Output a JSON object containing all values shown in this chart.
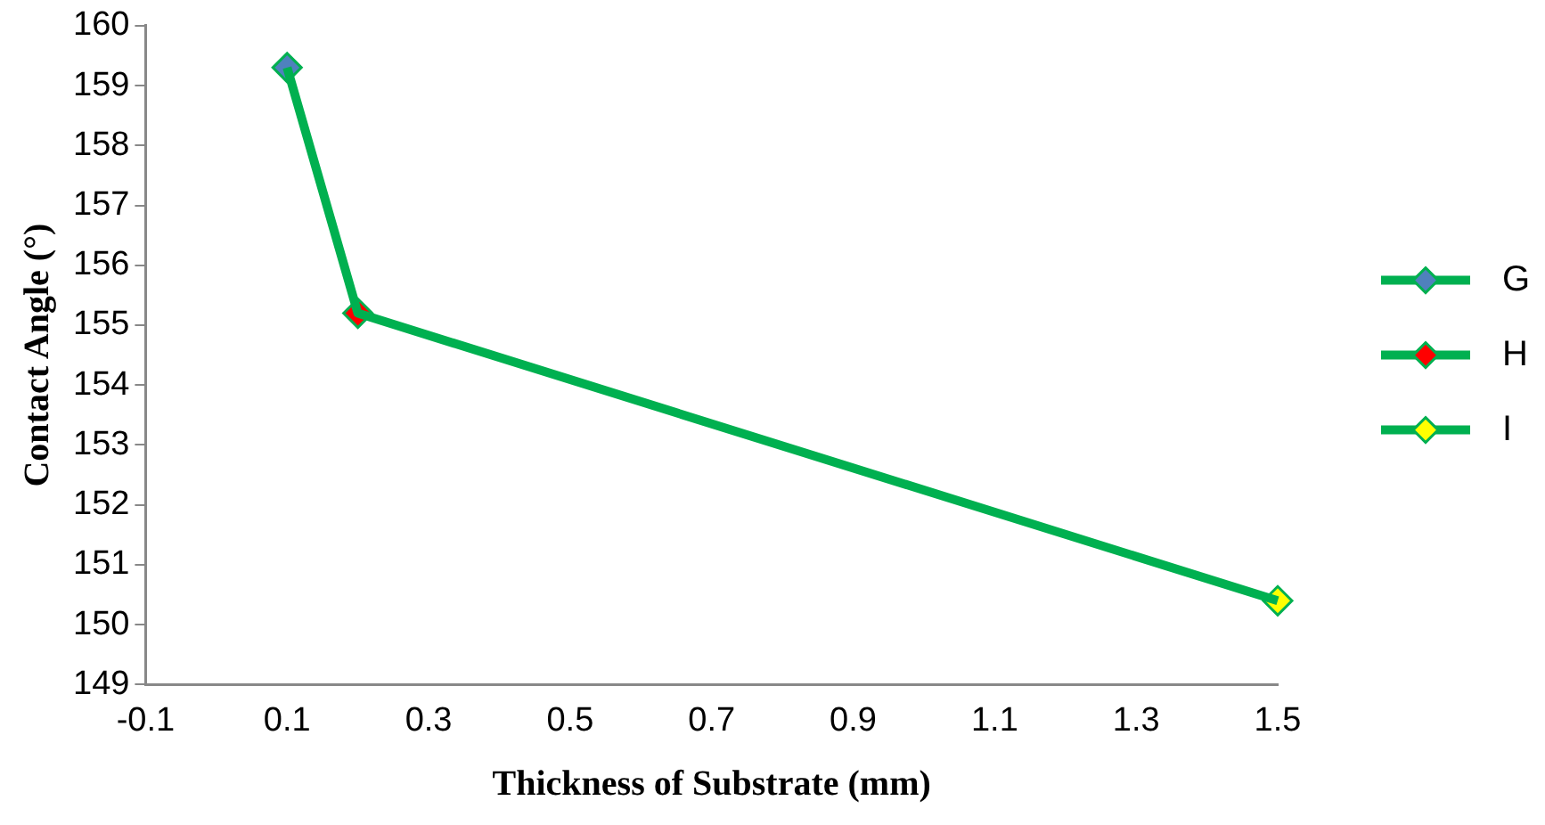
{
  "chart_data": {
    "type": "line",
    "xlabel": "Thickness of Substrate (mm)",
    "ylabel": "Contact Angle (°)",
    "xlim": [
      -0.1,
      1.5
    ],
    "xticks": [
      -0.1,
      0.1,
      0.3,
      0.5,
      0.7,
      0.9,
      1.1,
      1.3,
      1.5
    ],
    "ylim": [
      149,
      160
    ],
    "yticks": [
      149,
      150,
      151,
      152,
      153,
      154,
      155,
      156,
      157,
      158,
      159,
      160
    ],
    "grid": false,
    "legend": "right",
    "marker": "diamond",
    "line_style": "solid",
    "series": [
      {
        "type": "line",
        "marker": "none",
        "color": "#00b050",
        "x": [
          0.1,
          0.2,
          1.5
        ],
        "values": [
          159.3,
          155.2,
          150.4
        ]
      },
      {
        "name": "G",
        "color": "#00b050",
        "colors": [
          "#4f81bd"
        ],
        "x": [
          0.1
        ],
        "values": [
          159.3
        ]
      },
      {
        "name": "H",
        "color": "#00b050",
        "colors": [
          "#ff0000"
        ],
        "x": [
          0.2
        ],
        "values": [
          155.2
        ]
      },
      {
        "name": "I",
        "color": "#00b050",
        "colors": [
          "#ffff00"
        ],
        "x": [
          1.5
        ],
        "values": [
          150.4
        ]
      }
    ]
  }
}
